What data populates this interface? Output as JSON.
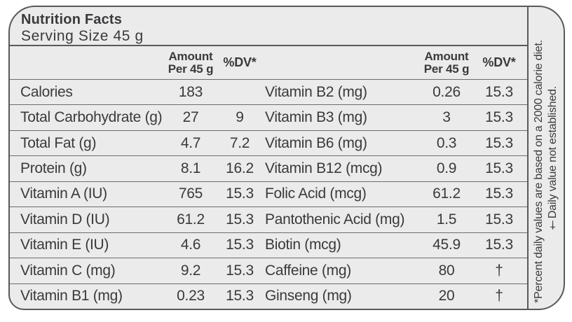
{
  "header": {
    "title": "Nutrition Facts",
    "serving": "Serving Size 45 g"
  },
  "columns": {
    "amount_line1": "Amount",
    "amount_line2": "Per 45 g",
    "dv": "%DV*"
  },
  "rows": [
    {
      "left": {
        "label": "Calories",
        "amount": "183",
        "dv": ""
      },
      "right": {
        "label": "Vitamin B2 (mg)",
        "amount": "0.26",
        "dv": "15.3"
      }
    },
    {
      "left": {
        "label": "Total Carbohydrate (g)",
        "amount": "27",
        "dv": "9"
      },
      "right": {
        "label": "Vitamin B3 (mg)",
        "amount": "3",
        "dv": "15.3"
      }
    },
    {
      "left": {
        "label": "Total Fat (g)",
        "amount": "4.7",
        "dv": "7.2"
      },
      "right": {
        "label": "Vitamin B6 (mg)",
        "amount": "0.3",
        "dv": "15.3"
      }
    },
    {
      "left": {
        "label": "Protein (g)",
        "amount": "8.1",
        "dv": "16.2"
      },
      "right": {
        "label": "Vitamin B12 (mcg)",
        "amount": "0.9",
        "dv": "15.3"
      }
    },
    {
      "left": {
        "label": "Vitamin A (IU)",
        "amount": "765",
        "dv": "15.3"
      },
      "right": {
        "label": "Folic Acid (mcg)",
        "amount": "61.2",
        "dv": "15.3"
      }
    },
    {
      "left": {
        "label": "Vitamin D (IU)",
        "amount": "61.2",
        "dv": "15.3"
      },
      "right": {
        "label": "Pantothenic Acid (mg)",
        "amount": "1.5",
        "dv": "15.3"
      }
    },
    {
      "left": {
        "label": "Vitamin E (IU)",
        "amount": "4.6",
        "dv": "15.3"
      },
      "right": {
        "label": "Biotin (mcg)",
        "amount": "45.9",
        "dv": "15.3"
      }
    },
    {
      "left": {
        "label": "Vitamin C (mg)",
        "amount": "9.2",
        "dv": "15.3"
      },
      "right": {
        "label": "Caffeine (mg)",
        "amount": "80",
        "dv": "†"
      }
    },
    {
      "left": {
        "label": "Vitamin B1 (mg)",
        "amount": "0.23",
        "dv": "15.3"
      },
      "right": {
        "label": "Ginseng (mg)",
        "amount": "20",
        "dv": "†"
      }
    }
  ],
  "footnotes": {
    "percent": "*Percent daily values are based on a 2000 calorie diet.",
    "dagger": "†Daily value not established."
  },
  "colors": {
    "card_background": "#ebebeb",
    "border": "#58595b",
    "row_line": "#6b6c6e",
    "text": "#3a3a3c"
  }
}
